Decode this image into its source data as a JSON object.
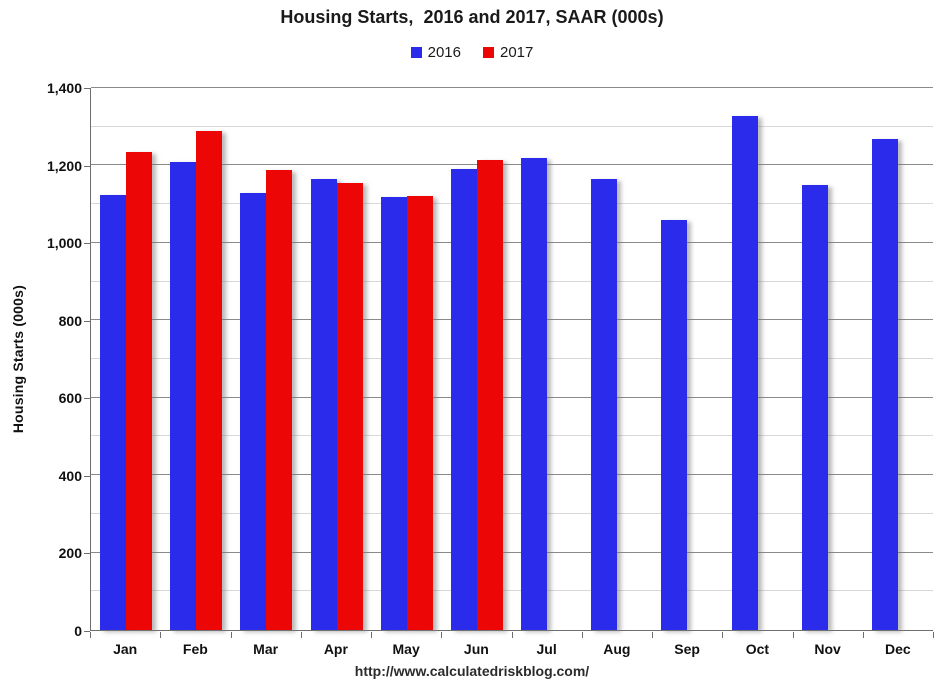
{
  "chart": {
    "title": "Housing Starts,  2016 and 2017, SAAR (000s)",
    "ylabel": "Housing Starts (000s)",
    "source_url": "http://www.calculatedriskblog.com/",
    "colors": {
      "series_2016": "#2B2BEC",
      "series_2017": "#EC0606",
      "major_gridline": "#8A8A8A",
      "minor_gridline": "#D8D8D8",
      "axis": "#6E6E6E",
      "text": "#111111"
    }
  },
  "chart_data": {
    "type": "bar",
    "title": "Housing Starts,  2016 and 2017, SAAR (000s)",
    "xlabel": "",
    "ylabel": "Housing Starts (000s)",
    "source": "http://www.calculatedriskblog.com/",
    "categories": [
      "Jan",
      "Feb",
      "Mar",
      "Apr",
      "May",
      "Jun",
      "Jul",
      "Aug",
      "Sep",
      "Oct",
      "Nov",
      "Dec"
    ],
    "series": [
      {
        "name": "2016",
        "color": "#2B2BEC",
        "values": [
          1123,
          1210,
          1129,
          1164,
          1118,
          1190,
          1220,
          1164,
          1060,
          1327,
          1149,
          1268
        ]
      },
      {
        "name": "2017",
        "color": "#EC0606",
        "values": [
          1235,
          1289,
          1189,
          1154,
          1120,
          1213,
          null,
          null,
          null,
          null,
          null,
          null
        ]
      }
    ],
    "ylim": [
      0,
      1400
    ],
    "y_major_tick": 200,
    "y_minor_tick": 100,
    "grid": true,
    "legend_position": "top-center"
  }
}
